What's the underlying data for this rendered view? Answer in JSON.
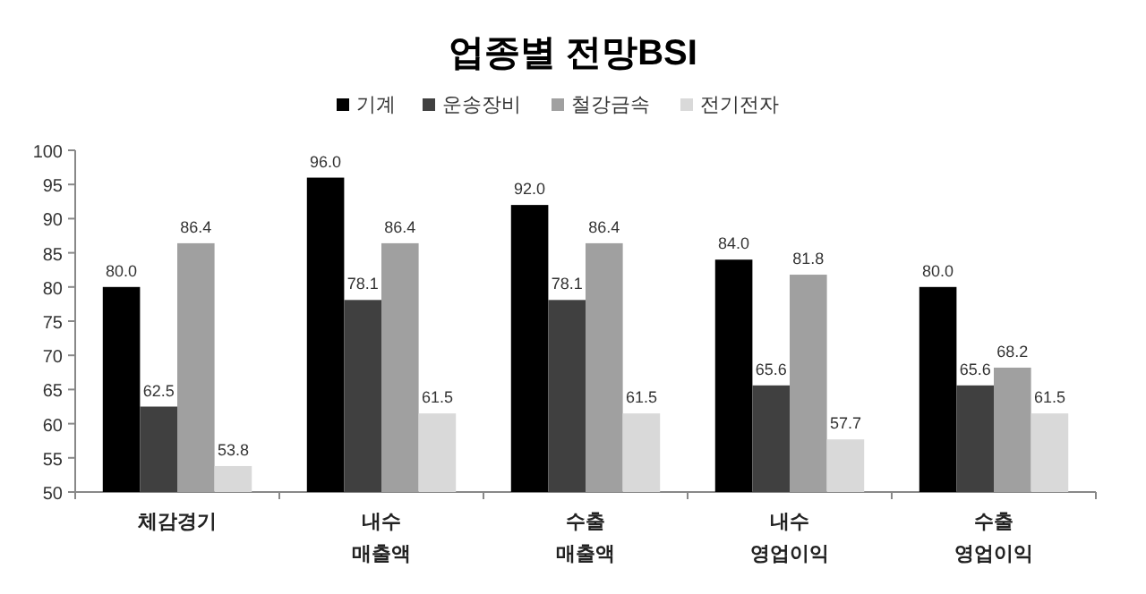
{
  "chart_data": {
    "type": "bar",
    "title": "업종별 전망BSI",
    "categories": [
      "체감경기",
      "내수\n매출액",
      "수출\n매출액",
      "내수\n영업이익",
      "수출\n영업이익"
    ],
    "series": [
      {
        "name": "기계",
        "color": "#000000",
        "values": [
          80.0,
          96.0,
          92.0,
          84.0,
          80.0
        ],
        "value_labels": [
          "80.0",
          "96.0",
          "92.0",
          "84.0",
          "80.0"
        ]
      },
      {
        "name": "운송장비",
        "color": "#404040",
        "values": [
          62.5,
          78.1,
          78.1,
          65.6,
          65.6
        ],
        "value_labels": [
          "62.5",
          "78.1",
          "78.1",
          "65.6",
          "65.6"
        ]
      },
      {
        "name": "철강금속",
        "color": "#a0a0a0",
        "values": [
          86.4,
          86.4,
          86.4,
          81.8,
          68.2
        ],
        "value_labels": [
          "86.4",
          "86.4",
          "86.4",
          "81.8",
          "68.2"
        ]
      },
      {
        "name": "전기전자",
        "color": "#d9d9d9",
        "values": [
          53.8,
          61.5,
          61.5,
          57.7,
          61.5
        ],
        "value_labels": [
          "53.8",
          "61.5",
          "61.5",
          "57.7",
          "61.5"
        ]
      }
    ],
    "ylim": [
      50,
      100
    ],
    "yticks": [
      50,
      55,
      60,
      65,
      70,
      75,
      80,
      85,
      90,
      95,
      100
    ],
    "grid": false,
    "legend": "top"
  }
}
